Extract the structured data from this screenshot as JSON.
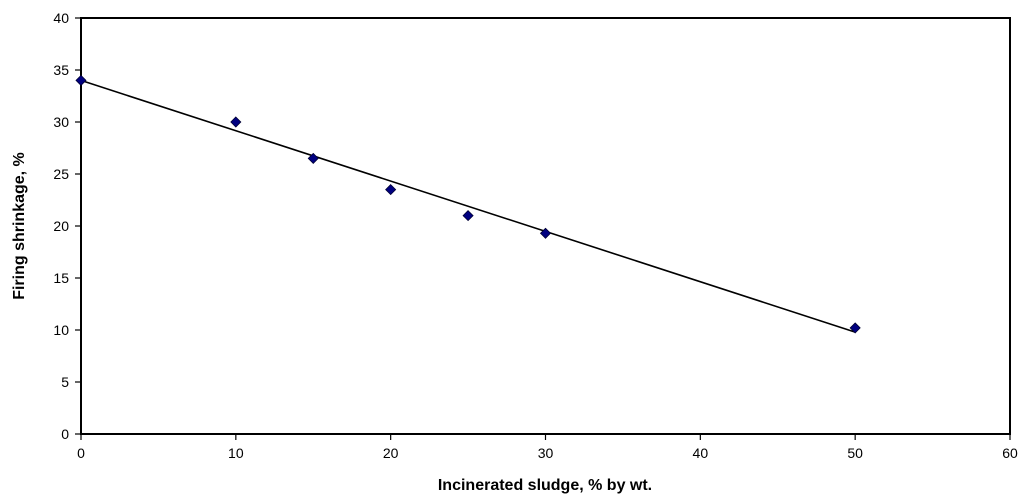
{
  "chart_data": {
    "type": "scatter",
    "title": "",
    "xlabel": "Incinerated sludge, % by wt.",
    "ylabel": "Firing shrinkage, %",
    "xlim": [
      0,
      60
    ],
    "ylim": [
      0,
      40
    ],
    "x_ticks": [
      "0",
      "10",
      "20",
      "30",
      "40",
      "50",
      "60"
    ],
    "y_ticks": [
      "0",
      "5",
      "10",
      "15",
      "20",
      "25",
      "30",
      "35",
      "40"
    ],
    "grid": false,
    "legend": "none",
    "series": [
      {
        "marker": "diamond",
        "color": "#000080",
        "points": [
          {
            "x": 0,
            "y": 34.0
          },
          {
            "x": 10,
            "y": 30.0
          },
          {
            "x": 15,
            "y": 26.5
          },
          {
            "x": 20,
            "y": 23.5
          },
          {
            "x": 25,
            "y": 21.0
          },
          {
            "x": 30,
            "y": 19.3
          },
          {
            "x": 50,
            "y": 10.2
          }
        ]
      }
    ],
    "trendline": {
      "type": "linear",
      "x": [
        0,
        50
      ],
      "y": [
        34.0,
        9.8
      ],
      "color": "#000000"
    }
  }
}
